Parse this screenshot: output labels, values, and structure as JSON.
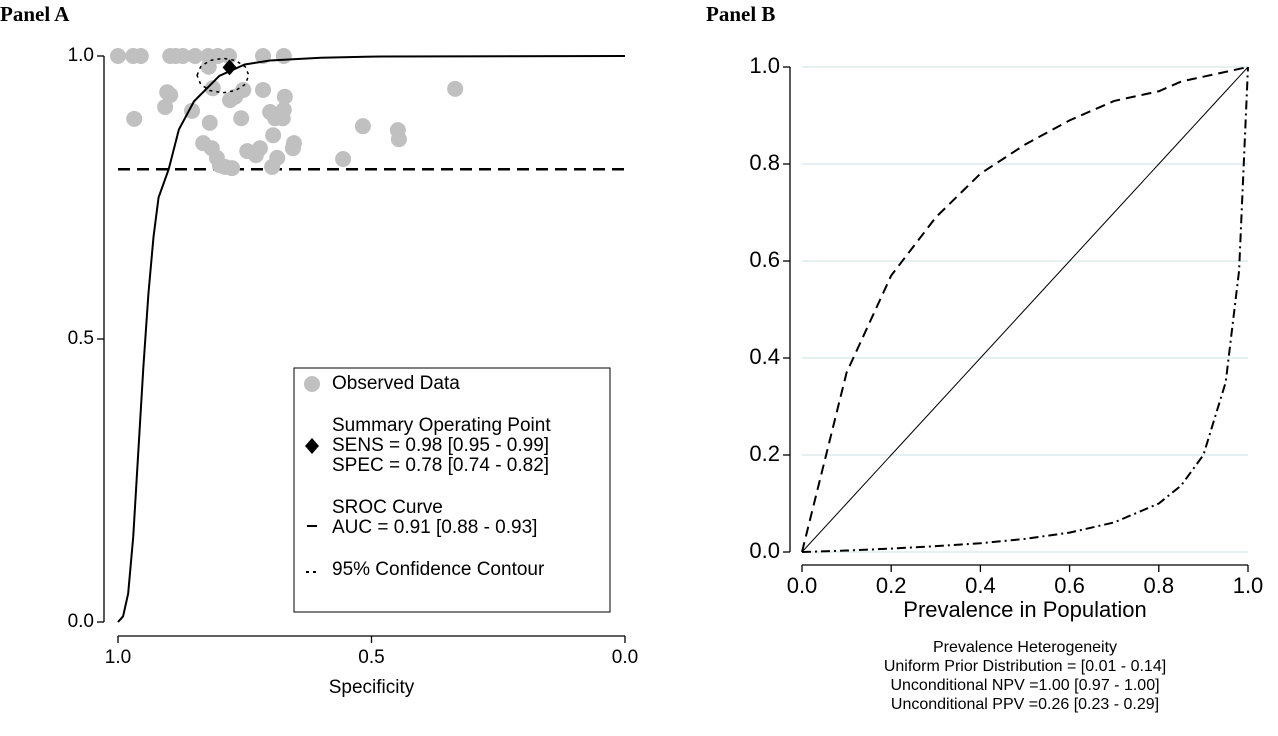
{
  "chart_data": [
    {
      "type": "sroc",
      "title": "Panel A",
      "x_label": "Specificity",
      "xlim": [
        1,
        0
      ],
      "ylim": [
        0,
        1
      ],
      "xticks": [
        {
          "value": 1,
          "label": "1.0"
        },
        0.5,
        {
          "value": 0,
          "label": "0.0"
        }
      ],
      "yticks": [
        {
          "value": 0,
          "label": "0.0"
        },
        0.5,
        {
          "value": 1,
          "label": "1.0"
        }
      ],
      "reference_line": 0.8,
      "legend": "bottom right",
      "series": [
        {
          "name": "Observed Data",
          "kind": "scatter",
          "color": "#c0c0c0",
          "x": [
            1.0,
            0.97,
            0.955,
            0.897,
            0.886,
            0.872,
            0.848,
            0.822,
            0.803,
            0.781,
            0.714,
            0.673,
            0.968,
            0.903,
            0.897,
            0.907,
            0.854,
            0.819,
            0.832,
            0.815,
            0.805,
            0.799,
            0.775,
            0.789,
            0.821,
            0.813,
            0.779,
            0.769,
            0.753,
            0.757,
            0.745,
            0.728,
            0.72,
            0.7,
            0.69,
            0.673,
            0.671,
            0.675,
            0.694,
            0.655,
            0.653,
            0.686,
            0.696,
            0.556,
            0.517,
            0.448,
            0.446,
            0.335,
            0.714
          ],
          "y": [
            1,
            1,
            1,
            1,
            1,
            1,
            1,
            1,
            1,
            1,
            1,
            1,
            0.889,
            0.936,
            0.931,
            0.91,
            0.903,
            0.882,
            0.846,
            0.837,
            0.82,
            0.807,
            0.802,
            0.804,
            0.981,
            0.943,
            0.922,
            0.928,
            0.94,
            0.89,
            0.832,
            0.825,
            0.837,
            0.901,
            0.89,
            0.905,
            0.928,
            0.89,
            0.86,
            0.837,
            0.846,
            0.82,
            0.804,
            0.818,
            0.876,
            0.869,
            0.853,
            0.942,
            0.94
          ]
        },
        {
          "name": [
            "Summary Operating Point",
            "SENS = 0.98 [0.95 - 0.99]",
            "SPEC = 0.78 [0.74 - 0.82]"
          ],
          "kind": "point",
          "color": "#000000",
          "x": [
            0.78
          ],
          "y": [
            0.98
          ]
        },
        {
          "name": [
            "SROC Curve",
            "AUC = 0.91 [0.88 - 0.93]"
          ],
          "kind": "line",
          "color": "#000000",
          "x": [
            1.0,
            0.99,
            0.98,
            0.97,
            0.96,
            0.95,
            0.94,
            0.93,
            0.92,
            0.9,
            0.88,
            0.85,
            0.8,
            0.75,
            0.7,
            0.6,
            0.5,
            0.0
          ],
          "y": [
            0.0,
            0.01,
            0.05,
            0.15,
            0.3,
            0.45,
            0.58,
            0.68,
            0.75,
            0.8,
            0.87,
            0.92,
            0.965,
            0.985,
            0.992,
            0.997,
            0.999,
            1.0
          ]
        },
        {
          "name": "95% Confidence Contour",
          "kind": "contour",
          "color": "#000000",
          "x": [
            0.844,
            0.837,
            0.819,
            0.793,
            0.768,
            0.749,
            0.742,
            0.749,
            0.768,
            0.793,
            0.819,
            0.837
          ],
          "y": [
            0.966,
            0.981,
            0.992,
            0.996,
            0.992,
            0.981,
            0.966,
            0.95,
            0.939,
            0.935,
            0.939,
            0.95
          ]
        }
      ]
    },
    {
      "type": "line",
      "title": "Panel B",
      "x_label": "Prevalence in Population",
      "annotations": [
        "Prevalence Heterogeneity",
        "Uniform Prior Distribution = [0.01 - 0.14]",
        "Unconditional NPV =1.00 [0.97 - 1.00]",
        "Unconditional PPV =0.26 [0.23 - 0.29]"
      ],
      "xlim": [
        0,
        1
      ],
      "ylim": [
        0,
        1
      ],
      "grid": true,
      "xticks": [
        {
          "value": 0,
          "label": "0.0"
        },
        0.2,
        0.4,
        0.6,
        0.8,
        {
          "value": 1,
          "label": "1.0"
        }
      ],
      "yticks": [
        {
          "value": 0,
          "label": "0.0"
        },
        0.2,
        0.4,
        0.6,
        0.8,
        {
          "value": 1,
          "label": "1.0"
        }
      ],
      "x": [
        0,
        0.1,
        0.2,
        0.3,
        0.4,
        0.5,
        0.6,
        0.7,
        0.8,
        0.85,
        0.9,
        0.95,
        0.98,
        1
      ],
      "series": [
        {
          "color": "#000000",
          "dash": "dashed",
          "values": [
            0,
            0.37,
            0.57,
            0.69,
            0.78,
            0.84,
            0.89,
            0.93,
            0.95,
            0.97,
            0.98,
            0.99,
            0.996,
            1
          ]
        },
        {
          "color": "#000000",
          "dash": "solid",
          "values": [
            0,
            0.1,
            0.2,
            0.3,
            0.4,
            0.5,
            0.6,
            0.7,
            0.8,
            0.85,
            0.9,
            0.95,
            0.98,
            1
          ]
        },
        {
          "color": "#000000",
          "dash": "dashdot",
          "values": [
            0,
            0.003,
            0.007,
            0.012,
            0.018,
            0.027,
            0.04,
            0.061,
            0.1,
            0.137,
            0.2,
            0.35,
            0.58,
            1
          ]
        }
      ]
    }
  ]
}
